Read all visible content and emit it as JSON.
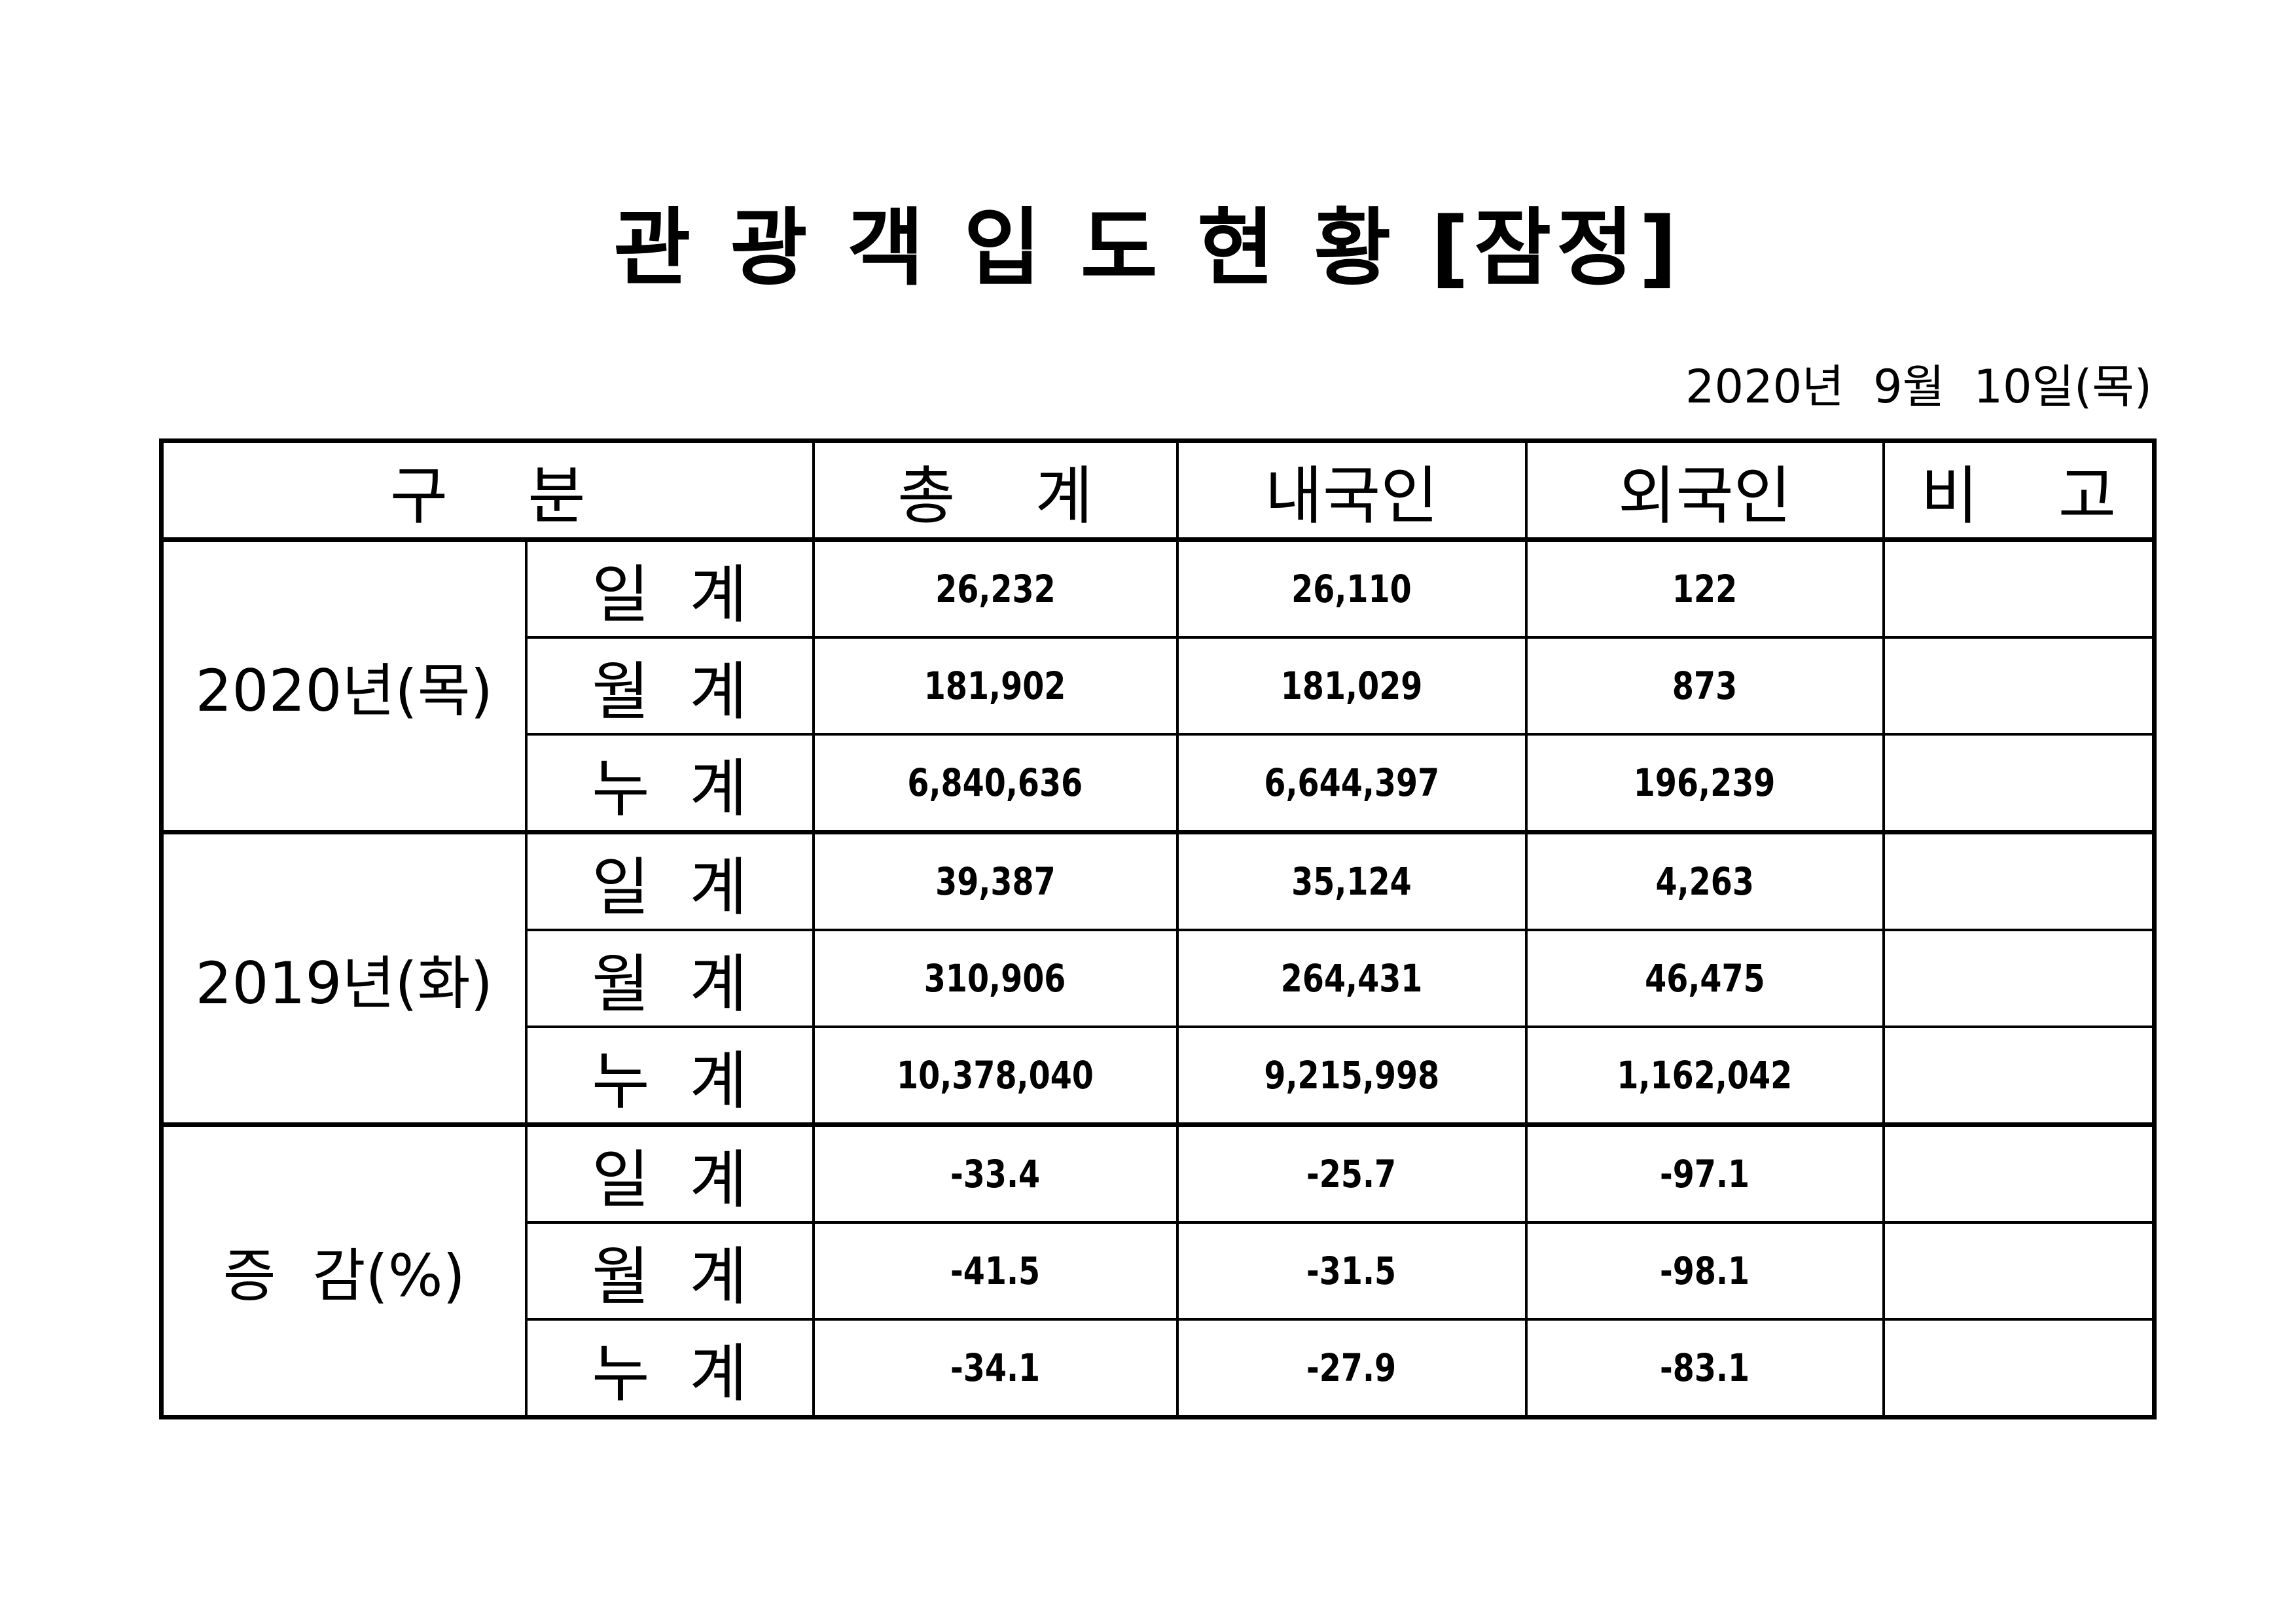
{
  "title": "관 광 객 입 도 현 황 [잠정]",
  "date": "2020년  9월  10일(목)",
  "table": {
    "headers": [
      "구    분",
      "총    계",
      "내국인",
      "외국인",
      "비    고"
    ],
    "groups": [
      {
        "label": "2020년(목)",
        "rows": [
          {
            "label": "일  계",
            "total": "26,232",
            "domestic": "26,110",
            "foreign": "122",
            "note": ""
          },
          {
            "label": "월  계",
            "total": "181,902",
            "domestic": "181,029",
            "foreign": "873",
            "note": ""
          },
          {
            "label": "누  계",
            "total": "6,840,636",
            "domestic": "6,644,397",
            "foreign": "196,239",
            "note": ""
          }
        ]
      },
      {
        "label": "2019년(화)",
        "rows": [
          {
            "label": "일  계",
            "total": "39,387",
            "domestic": "35,124",
            "foreign": "4,263",
            "note": ""
          },
          {
            "label": "월  계",
            "total": "310,906",
            "domestic": "264,431",
            "foreign": "46,475",
            "note": ""
          },
          {
            "label": "누  계",
            "total": "10,378,040",
            "domestic": "9,215,998",
            "foreign": "1,162,042",
            "note": ""
          }
        ]
      },
      {
        "label": "증  감(%)",
        "rows": [
          {
            "label": "일  계",
            "total": "-33.4",
            "domestic": "-25.7",
            "foreign": "-97.1",
            "note": ""
          },
          {
            "label": "월  계",
            "total": "-41.5",
            "domestic": "-31.5",
            "foreign": "-98.1",
            "note": ""
          },
          {
            "label": "누  계",
            "total": "-34.1",
            "domestic": "-27.9",
            "foreign": "-83.1",
            "note": ""
          }
        ]
      }
    ]
  }
}
